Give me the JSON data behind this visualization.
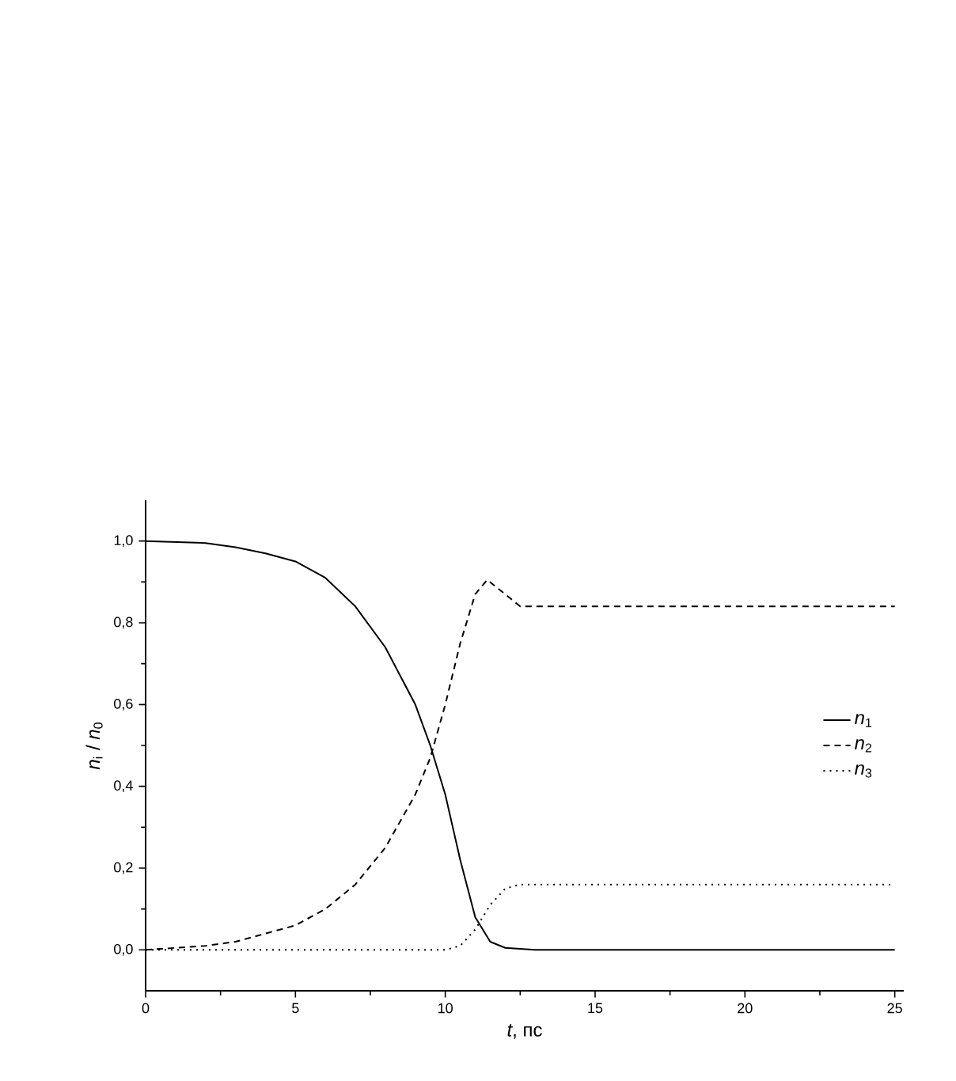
{
  "chart_data": {
    "type": "line",
    "xlabel": "*t*, пс",
    "ylabel": "*n*$_{i}$ / *n*$_{0}$",
    "xlim": [
      0,
      25.3
    ],
    "ylim": [
      -0.1,
      1.1
    ],
    "xticks": [
      0,
      5,
      10,
      15,
      20,
      25
    ],
    "yticks": [
      {
        "value": 0.0,
        "label": "0,0"
      },
      {
        "value": 0.2,
        "label": "0,2"
      },
      {
        "value": 0.4,
        "label": "0,4"
      },
      {
        "value": 0.6,
        "label": "0,6"
      },
      {
        "value": 0.8,
        "label": "0,8"
      },
      {
        "value": 1.0,
        "label": "1,0"
      }
    ],
    "grid": false,
    "legend": "right",
    "marker": "none",
    "series": [
      {
        "name": "*n*$_{1}$",
        "color": "#000000",
        "line_style": "solid",
        "x": [
          0,
          2,
          3,
          4,
          5,
          6,
          7,
          8,
          9,
          9.5,
          10,
          10.5,
          11,
          11.5,
          12,
          13,
          25
        ],
        "values": [
          1.0,
          0.995,
          0.985,
          0.97,
          0.95,
          0.91,
          0.84,
          0.74,
          0.6,
          0.5,
          0.38,
          0.22,
          0.08,
          0.02,
          0.005,
          0,
          0
        ]
      },
      {
        "name": "*n*$_{2}$",
        "color": "#000000",
        "line_style": "dashed",
        "x": [
          0,
          2,
          3,
          4,
          5,
          6,
          7,
          8,
          9,
          9.5,
          10,
          10.5,
          11,
          11.4,
          12,
          12.5,
          25
        ],
        "values": [
          0,
          0.01,
          0.02,
          0.04,
          0.06,
          0.1,
          0.16,
          0.25,
          0.38,
          0.47,
          0.6,
          0.75,
          0.87,
          0.905,
          0.87,
          0.84,
          0.84
        ]
      },
      {
        "name": "*n*$_{3}$",
        "color": "#000000",
        "line_style": "dotted",
        "x": [
          0,
          10,
          10.5,
          11,
          11.5,
          12,
          12.5,
          25
        ],
        "values": [
          0,
          0,
          0.01,
          0.05,
          0.11,
          0.15,
          0.16,
          0.16
        ]
      }
    ]
  }
}
